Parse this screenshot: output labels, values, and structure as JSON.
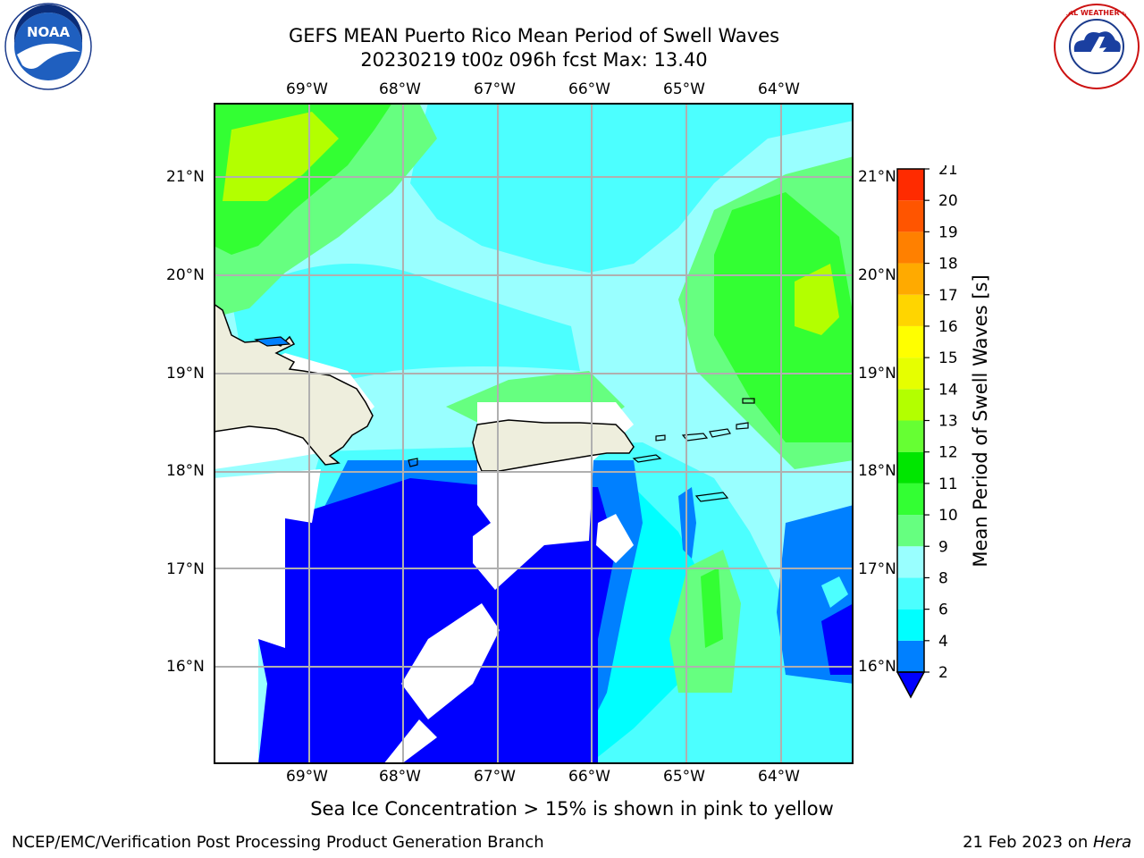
{
  "header": {
    "title_line1": "GEFS MEAN Puerto Rico Mean Period of Swell Waves",
    "title_line2": "20230219 t00z 096h fcst   Max: 13.40"
  },
  "logos": {
    "left": {
      "name": "noaa-logo",
      "text": "NOAA"
    },
    "right": {
      "name": "nws-logo",
      "text": "NATIONAL WEATHER SERVICE"
    }
  },
  "map": {
    "lon_ticks": [
      "69°W",
      "68°W",
      "67°W",
      "66°W",
      "65°W",
      "64°W"
    ],
    "lat_ticks": [
      "21°N",
      "20°N",
      "19°N",
      "18°N",
      "17°N",
      "16°N"
    ]
  },
  "colorbar": {
    "label": "Mean Period of Swell Waves [s]",
    "levels": [
      "2",
      "4",
      "6",
      "8",
      "9",
      "10",
      "11",
      "12",
      "13",
      "14",
      "15",
      "16",
      "17",
      "18",
      "19",
      "20",
      "21"
    ],
    "colors": [
      "#0000ff",
      "#0080ff",
      "#00ffff",
      "#4cffff",
      "#99ffff",
      "#66ff80",
      "#33ff33",
      "#00e600",
      "#66ff33",
      "#b3ff00",
      "#e6ff00",
      "#ffff00",
      "#ffd500",
      "#ffaa00",
      "#ff8000",
      "#ff5500",
      "#ff2b00",
      "#ff0000"
    ]
  },
  "footer": {
    "note": "Sea Ice Concentration > 15% is shown in pink to yellow",
    "left": "NCEP/EMC/Verification Post Processing Product Generation Branch",
    "right_date": "21 Feb 2023 on ",
    "right_machine": "Hera"
  }
}
